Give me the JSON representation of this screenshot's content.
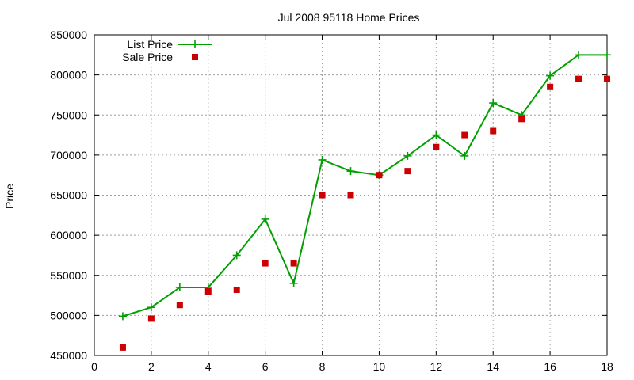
{
  "chart_data": {
    "type": "line",
    "title": "Jul 2008 95118 Home Prices",
    "xlabel": "",
    "ylabel": "Price",
    "xlim": [
      0,
      18
    ],
    "ylim": [
      450000,
      850000
    ],
    "xticks": [
      0,
      2,
      4,
      6,
      8,
      10,
      12,
      14,
      16,
      18
    ],
    "yticks": [
      450000,
      500000,
      550000,
      600000,
      650000,
      700000,
      750000,
      800000,
      850000
    ],
    "grid": true,
    "legend": "top-left",
    "series": [
      {
        "name": "List Price",
        "style": "line-plus",
        "color": "#00a000",
        "x": [
          1,
          2,
          3,
          4,
          5,
          6,
          7,
          8,
          9,
          10,
          11,
          12,
          13,
          14,
          15,
          16,
          17,
          18
        ],
        "y": [
          499000,
          510000,
          535000,
          535000,
          575000,
          620000,
          540000,
          694000,
          680000,
          675000,
          699000,
          725000,
          699000,
          765000,
          750000,
          799000,
          825000,
          825000
        ]
      },
      {
        "name": "Sale Price",
        "style": "square",
        "color": "#cc0000",
        "x": [
          1,
          2,
          3,
          4,
          5,
          6,
          7,
          8,
          9,
          10,
          11,
          12,
          13,
          14,
          15,
          16,
          17,
          18
        ],
        "y": [
          460000,
          496000,
          513000,
          530000,
          532000,
          565000,
          565000,
          650000,
          650000,
          675000,
          680000,
          710000,
          725000,
          730000,
          745000,
          785000,
          795000,
          795000
        ]
      }
    ]
  }
}
